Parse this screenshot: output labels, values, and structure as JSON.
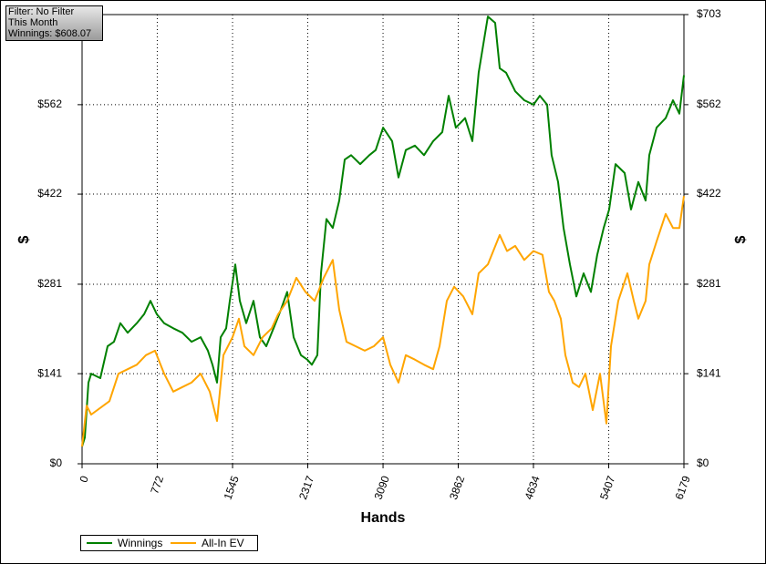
{
  "chart_data": {
    "type": "line",
    "info": [
      "Filter: No Filter",
      "This Month",
      "Winnings: $608.07"
    ],
    "xlabel": "Hands",
    "ylabel": "$",
    "y2label": "$",
    "xlim": [
      0,
      6179
    ],
    "xticks": [
      0,
      772,
      1545,
      2317,
      3090,
      3862,
      4634,
      5407,
      6179
    ],
    "ylim": [
      0,
      703
    ],
    "yticks": [
      {
        "value": 0,
        "label": "$0"
      },
      {
        "value": 141,
        "label": "$141"
      },
      {
        "value": 281,
        "label": "$281"
      },
      {
        "value": 422,
        "label": "$422"
      },
      {
        "value": 562,
        "label": "$562"
      },
      {
        "value": 703,
        "label": "$703"
      }
    ],
    "grid": true,
    "legend": "bottom-left",
    "series": [
      {
        "name": "Winnings",
        "color": "#008000",
        "x": [
          0,
          28,
          66,
          94,
          187,
          262,
          328,
          393,
          468,
          562,
          637,
          702,
          768,
          843,
          936,
          1030,
          1123,
          1217,
          1292,
          1339,
          1386,
          1423,
          1479,
          1517,
          1573,
          1620,
          1685,
          1760,
          1826,
          1891,
          1966,
          2041,
          2106,
          2172,
          2247,
          2312,
          2359,
          2415,
          2453,
          2509,
          2574,
          2640,
          2696,
          2762,
          2855,
          2949,
          3015,
          3090,
          3183,
          3249,
          3324,
          3417,
          3511,
          3604,
          3698,
          3764,
          3838,
          3932,
          4007,
          4072,
          4166,
          4241,
          4288,
          4353,
          4447,
          4540,
          4634,
          4700,
          4775,
          4821,
          4887,
          4943,
          5009,
          5074,
          5149,
          5224,
          5289,
          5355,
          5411,
          5477,
          5570,
          5636,
          5711,
          5786,
          5823,
          5898,
          5992,
          6067,
          6132,
          6179
        ],
        "values": [
          27,
          41,
          127,
          141,
          134,
          184,
          191,
          220,
          205,
          220,
          234,
          255,
          234,
          220,
          212,
          205,
          191,
          198,
          177,
          155,
          127,
          198,
          212,
          255,
          312,
          255,
          220,
          255,
          198,
          184,
          212,
          241,
          269,
          198,
          170,
          163,
          155,
          170,
          298,
          383,
          369,
          412,
          476,
          483,
          469,
          483,
          491,
          526,
          505,
          448,
          491,
          498,
          483,
          505,
          519,
          576,
          526,
          541,
          505,
          612,
          700,
          690,
          619,
          612,
          583,
          569,
          562,
          576,
          562,
          483,
          441,
          369,
          312,
          262,
          298,
          269,
          327,
          369,
          398,
          469,
          455,
          398,
          441,
          412,
          483,
          526,
          541,
          569,
          548,
          608
        ]
      },
      {
        "name": "All-In EV",
        "color": "#ffa500",
        "x": [
          0,
          47,
          94,
          281,
          374,
          468,
          562,
          655,
          749,
          843,
          936,
          1030,
          1123,
          1217,
          1311,
          1386,
          1451,
          1545,
          1610,
          1666,
          1760,
          1854,
          1947,
          2013,
          2106,
          2200,
          2294,
          2387,
          2481,
          2574,
          2640,
          2715,
          2809,
          2902,
          2996,
          3090,
          3164,
          3249,
          3324,
          3417,
          3511,
          3604,
          3670,
          3745,
          3820,
          3913,
          4007,
          4072,
          4166,
          4288,
          4363,
          4447,
          4540,
          4634,
          4727,
          4793,
          4849,
          4915,
          4962,
          5037,
          5102,
          5168,
          5243,
          5318,
          5383,
          5430,
          5505,
          5599,
          5664,
          5711,
          5786,
          5823,
          5898,
          5992,
          6067,
          6132,
          6179
        ],
        "values": [
          27,
          91,
          77,
          98,
          141,
          148,
          155,
          170,
          177,
          141,
          113,
          120,
          127,
          141,
          113,
          67,
          170,
          198,
          227,
          184,
          170,
          198,
          212,
          234,
          255,
          291,
          269,
          255,
          291,
          319,
          241,
          191,
          184,
          177,
          184,
          198,
          155,
          127,
          170,
          163,
          155,
          148,
          184,
          255,
          277,
          262,
          234,
          298,
          312,
          358,
          333,
          341,
          319,
          333,
          327,
          269,
          255,
          227,
          170,
          127,
          120,
          141,
          84,
          141,
          63,
          184,
          255,
          298,
          255,
          227,
          255,
          312,
          348,
          391,
          369,
          369,
          419
        ]
      }
    ]
  }
}
